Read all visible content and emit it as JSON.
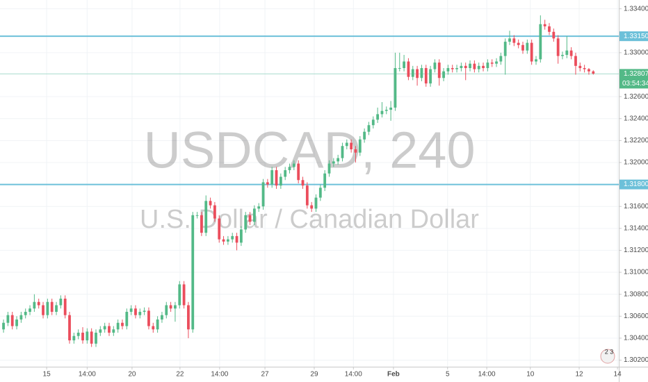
{
  "chart_data": {
    "type": "candlestick",
    "watermark": [
      "USDCAD, 240",
      "U.S. Dollar / Canadian Dollar"
    ],
    "up_color": "#53b987",
    "down_color": "#eb4d5c",
    "level_color": "#6cc0d9",
    "grid": true,
    "open": [
      1.3048,
      1.3054,
      1.3061,
      1.3051,
      1.3057,
      1.3061,
      1.3064,
      1.3067,
      1.3073,
      1.307,
      1.3061,
      1.3073,
      1.3064,
      1.307,
      1.3076,
      1.3061,
      1.3038,
      1.3042,
      1.3045,
      1.3038,
      1.3046,
      1.3035,
      1.3045,
      1.3048,
      1.3051,
      1.3045,
      1.3048,
      1.3054,
      1.3051,
      1.3064,
      1.3067,
      1.3061,
      1.3064,
      1.3065,
      1.3051,
      1.3048,
      1.3057,
      1.3061,
      1.307,
      1.3067,
      1.307,
      1.3089,
      1.307,
      1.3048,
      1.3152,
      1.3152,
      1.3136,
      1.3165,
      1.3161,
      1.3149,
      1.313,
      1.3128,
      1.313,
      1.3133,
      1.3127,
      1.3139,
      1.3152,
      1.3146,
      1.3158,
      1.316,
      1.3182,
      1.318,
      1.3193,
      1.3179,
      1.3187,
      1.3193,
      1.3196,
      1.3199,
      1.3184,
      1.3179,
      1.3161,
      1.3158,
      1.3168,
      1.3177,
      1.319,
      1.3199,
      1.3201,
      1.3204,
      1.3215,
      1.3218,
      1.3212,
      1.3209,
      1.3221,
      1.3228,
      1.3234,
      1.3239,
      1.3244,
      1.3247,
      1.3248,
      1.325,
      1.3286,
      1.3286,
      1.3292,
      1.3278,
      1.3285,
      1.3277,
      1.3286,
      1.3272,
      1.3285,
      1.3291,
      1.3277,
      1.3283,
      1.3286,
      1.3285,
      1.3286,
      1.3288,
      1.3286,
      1.329,
      1.3285,
      1.3288,
      1.3286,
      1.3291,
      1.329,
      1.3292,
      1.3297,
      1.331,
      1.3313,
      1.3309,
      1.3307,
      1.3302,
      1.3309,
      1.3292,
      1.3294,
      1.3326,
      1.3324,
      1.3319,
      1.3313,
      1.3297,
      1.3298,
      1.3302,
      1.3297,
      1.3288,
      1.3286,
      1.3285,
      1.3283
    ],
    "high": [
      1.3057,
      1.3064,
      1.3064,
      1.306,
      1.3064,
      1.3067,
      1.307,
      1.308,
      1.3076,
      1.3073,
      1.3076,
      1.3076,
      1.3073,
      1.3079,
      1.3079,
      1.3064,
      1.3045,
      1.3048,
      1.305,
      1.3049,
      1.3049,
      1.3048,
      1.3051,
      1.3054,
      1.3054,
      1.3051,
      1.3057,
      1.3057,
      1.3067,
      1.307,
      1.307,
      1.3067,
      1.3068,
      1.3068,
      1.3054,
      1.306,
      1.3064,
      1.3073,
      1.3073,
      1.3073,
      1.3092,
      1.3092,
      1.3073,
      1.3155,
      1.3155,
      1.3155,
      1.317,
      1.3168,
      1.3164,
      1.3152,
      1.3133,
      1.3133,
      1.3136,
      1.3136,
      1.3142,
      1.3155,
      1.3155,
      1.3161,
      1.3163,
      1.3185,
      1.3185,
      1.3196,
      1.3196,
      1.319,
      1.3196,
      1.3199,
      1.3202,
      1.3202,
      1.3187,
      1.3182,
      1.3164,
      1.3171,
      1.318,
      1.3193,
      1.3202,
      1.3204,
      1.3207,
      1.3218,
      1.3221,
      1.3221,
      1.3215,
      1.3224,
      1.3231,
      1.3237,
      1.3242,
      1.325,
      1.3255,
      1.3251,
      1.3256,
      1.33,
      1.33,
      1.3298,
      1.3295,
      1.3288,
      1.3288,
      1.3289,
      1.3289,
      1.3288,
      1.3294,
      1.3294,
      1.3286,
      1.3289,
      1.3289,
      1.3289,
      1.3291,
      1.3291,
      1.3293,
      1.3293,
      1.3291,
      1.3291,
      1.3294,
      1.3294,
      1.3295,
      1.33,
      1.3313,
      1.332,
      1.3316,
      1.3312,
      1.331,
      1.3312,
      1.3312,
      1.3297,
      1.3334,
      1.333,
      1.3327,
      1.3322,
      1.3316,
      1.3301,
      1.3315,
      1.3305,
      1.33,
      1.3291,
      1.3289,
      1.3286,
      1.3284
    ],
    "low": [
      1.3045,
      1.3051,
      1.3048,
      1.3048,
      1.3054,
      1.3058,
      1.3061,
      1.3064,
      1.3067,
      1.3058,
      1.3058,
      1.3061,
      1.3061,
      1.3067,
      1.3058,
      1.3035,
      1.3035,
      1.3039,
      1.3035,
      1.3035,
      1.3032,
      1.3032,
      1.3042,
      1.3045,
      1.3042,
      1.3042,
      1.3045,
      1.3048,
      1.3048,
      1.3061,
      1.3058,
      1.3058,
      1.3061,
      1.3048,
      1.3045,
      1.3045,
      1.3054,
      1.3058,
      1.3064,
      1.3055,
      1.3067,
      1.3067,
      1.304,
      1.3045,
      1.3149,
      1.3133,
      1.3133,
      1.3158,
      1.3146,
      1.3127,
      1.3125,
      1.3125,
      1.3127,
      1.312,
      1.3124,
      1.3136,
      1.3143,
      1.3143,
      1.3155,
      1.3157,
      1.3177,
      1.3177,
      1.3176,
      1.3176,
      1.3184,
      1.319,
      1.3193,
      1.3181,
      1.3176,
      1.3158,
      1.3155,
      1.3155,
      1.3165,
      1.3174,
      1.3187,
      1.3196,
      1.3198,
      1.3201,
      1.3212,
      1.3209,
      1.32,
      1.3206,
      1.3218,
      1.3225,
      1.3231,
      1.3236,
      1.3241,
      1.3244,
      1.3238,
      1.3247,
      1.3283,
      1.3283,
      1.3275,
      1.3275,
      1.327,
      1.3274,
      1.3269,
      1.3269,
      1.3282,
      1.327,
      1.3274,
      1.328,
      1.3282,
      1.3282,
      1.3283,
      1.3275,
      1.3283,
      1.3282,
      1.3282,
      1.3283,
      1.3283,
      1.3287,
      1.3287,
      1.3289,
      1.328,
      1.3307,
      1.3306,
      1.3304,
      1.3299,
      1.3299,
      1.3289,
      1.3289,
      1.3291,
      1.3321,
      1.3316,
      1.331,
      1.329,
      1.3294,
      1.3295,
      1.3294,
      1.328,
      1.3283,
      1.3282,
      1.328,
      1.328
    ],
    "close": [
      1.3054,
      1.3061,
      1.3051,
      1.3057,
      1.3061,
      1.3064,
      1.3067,
      1.3073,
      1.307,
      1.3061,
      1.3073,
      1.3064,
      1.307,
      1.3076,
      1.3061,
      1.3038,
      1.3042,
      1.3045,
      1.3038,
      1.3046,
      1.3035,
      1.3045,
      1.3048,
      1.3051,
      1.3045,
      1.3048,
      1.3054,
      1.3051,
      1.3064,
      1.3067,
      1.3061,
      1.3064,
      1.3065,
      1.3051,
      1.3048,
      1.3057,
      1.3061,
      1.307,
      1.3067,
      1.307,
      1.3089,
      1.307,
      1.3048,
      1.3152,
      1.3152,
      1.3136,
      1.3165,
      1.3161,
      1.3149,
      1.313,
      1.3128,
      1.313,
      1.3133,
      1.3127,
      1.3139,
      1.3152,
      1.3146,
      1.3158,
      1.316,
      1.3182,
      1.318,
      1.3193,
      1.3179,
      1.3187,
      1.3193,
      1.3196,
      1.3199,
      1.3184,
      1.3179,
      1.3161,
      1.3158,
      1.3168,
      1.3177,
      1.319,
      1.3199,
      1.3201,
      1.3204,
      1.3215,
      1.3218,
      1.3212,
      1.3209,
      1.3221,
      1.3228,
      1.3234,
      1.3239,
      1.3244,
      1.3247,
      1.3248,
      1.325,
      1.3286,
      1.3286,
      1.3292,
      1.3278,
      1.3285,
      1.3277,
      1.3286,
      1.3272,
      1.3285,
      1.3291,
      1.3277,
      1.3283,
      1.3286,
      1.3285,
      1.3286,
      1.3288,
      1.3286,
      1.329,
      1.3285,
      1.3288,
      1.3286,
      1.3291,
      1.329,
      1.3292,
      1.3297,
      1.331,
      1.3313,
      1.3309,
      1.3307,
      1.3302,
      1.3309,
      1.3292,
      1.3294,
      1.3326,
      1.3324,
      1.3319,
      1.3313,
      1.3297,
      1.3298,
      1.3302,
      1.3297,
      1.3288,
      1.3286,
      1.3285,
      1.3283,
      1.3281
    ],
    "xlim": [
      -0.8,
      139.8
    ],
    "xticks": [
      {
        "value": 9.8,
        "label": "15"
      },
      {
        "value": 19,
        "label": "14:00"
      },
      {
        "value": 29.2,
        "label": "20"
      },
      {
        "value": 40.1,
        "label": "22"
      },
      {
        "value": 49.1,
        "label": "14:00"
      },
      {
        "value": 59.4,
        "label": "27"
      },
      {
        "value": 70.6,
        "label": "29"
      },
      {
        "value": 79.5,
        "label": "14:00"
      },
      {
        "value": 88.6,
        "label": "Feb"
      },
      {
        "value": 100.9,
        "label": "5"
      },
      {
        "value": 109.8,
        "label": "14:00"
      },
      {
        "value": 119.7,
        "label": "10"
      },
      {
        "value": 130.8,
        "label": "12"
      },
      {
        "value": 139.5,
        "label": "14"
      }
    ],
    "ylim": [
      1.3014,
      1.3348
    ],
    "yticks": [
      {
        "value": 1.334,
        "label": "1.33400"
      },
      {
        "value": 1.33,
        "label": "1.33000"
      },
      {
        "value": 1.326,
        "label": "1.32600"
      },
      {
        "value": 1.324,
        "label": "1.32400"
      },
      {
        "value": 1.322,
        "label": "1.32200"
      },
      {
        "value": 1.32,
        "label": "1.32000"
      },
      {
        "value": 1.316,
        "label": "1.31600"
      },
      {
        "value": 1.314,
        "label": "1.31400"
      },
      {
        "value": 1.312,
        "label": "1.31200"
      },
      {
        "value": 1.31,
        "label": "1.31000"
      },
      {
        "value": 1.308,
        "label": "1.30800"
      },
      {
        "value": 1.306,
        "label": "1.30600"
      },
      {
        "value": 1.304,
        "label": "1.30400"
      },
      {
        "value": 1.302,
        "label": "1.30200"
      }
    ],
    "levels": [
      {
        "value": 1.3315,
        "label": "1.33150"
      },
      {
        "value": 1.318,
        "label": "1.31800"
      }
    ],
    "last_price": {
      "value": 1.32807,
      "label": "1.32807"
    },
    "countdown": "03:54:34",
    "badge": "2 3"
  }
}
